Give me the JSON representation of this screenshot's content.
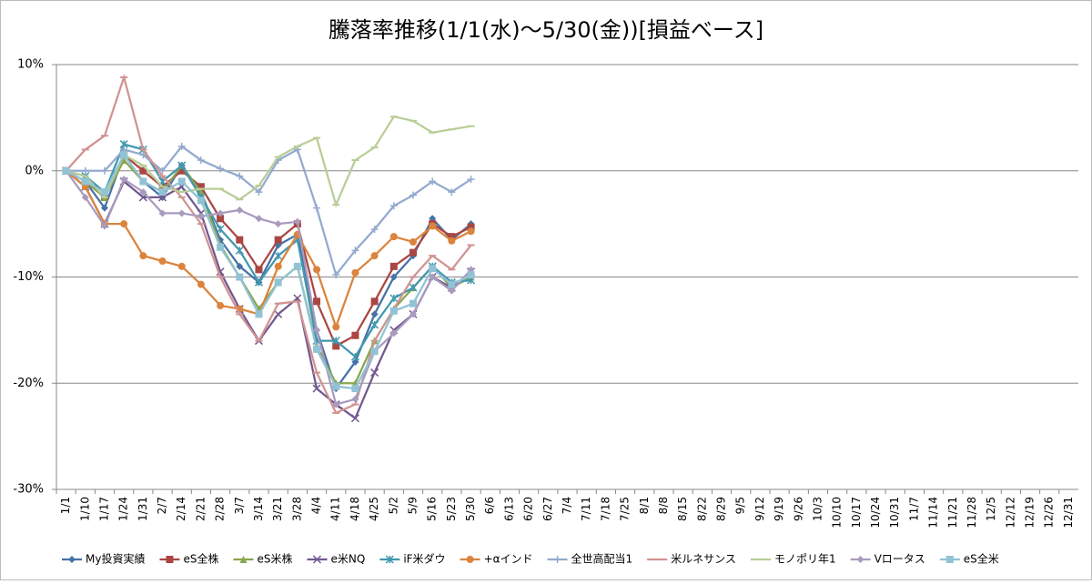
{
  "chart_data": {
    "type": "line",
    "title": "騰落率推移(1/1(水)～5/30(金))[損益ベース]",
    "categories": [
      "1/1",
      "1/10",
      "1/17",
      "1/24",
      "1/31",
      "2/7",
      "2/14",
      "2/21",
      "2/28",
      "3/7",
      "3/14",
      "3/21",
      "3/28",
      "4/4",
      "4/11",
      "4/18",
      "4/25",
      "5/2",
      "5/9",
      "5/16",
      "5/23",
      "5/30",
      "6/6",
      "6/13",
      "6/20",
      "6/27",
      "7/4",
      "7/11",
      "7/18",
      "7/25",
      "8/1",
      "8/8",
      "8/15",
      "8/22",
      "8/29",
      "9/5",
      "9/12",
      "9/19",
      "9/26",
      "10/3",
      "10/10",
      "10/17",
      "10/24",
      "10/31",
      "11/7",
      "11/14",
      "11/21",
      "11/28",
      "12/5",
      "12/12",
      "12/19",
      "12/26",
      "12/31"
    ],
    "ylim": [
      -30,
      10
    ],
    "yticks": [
      {
        "value": -30,
        "label": "-30%"
      },
      {
        "value": -20,
        "label": "-20%"
      },
      {
        "value": -10,
        "label": "-10%"
      },
      {
        "value": 0,
        "label": "0%"
      },
      {
        "value": 10,
        "label": "10%"
      }
    ],
    "grid": true,
    "legend": "bottom",
    "series": [
      {
        "name": "My投資実績",
        "color": "#4572A7",
        "marker": "diamond",
        "values": [
          0,
          -1,
          -3.5,
          1.5,
          -1,
          -2.5,
          0.5,
          -2,
          -6.5,
          -9,
          -10.5,
          -7,
          -6,
          -15,
          -20.5,
          -18,
          -13.5,
          -10,
          -8,
          -4.5,
          -6.5,
          -5,
          null,
          null,
          null,
          null,
          null,
          null,
          null,
          null,
          null,
          null,
          null,
          null,
          null,
          null,
          null,
          null,
          null,
          null,
          null,
          null,
          null,
          null,
          null,
          null,
          null,
          null,
          null,
          null,
          null,
          null,
          null
        ]
      },
      {
        "name": "eS全株",
        "color": "#AA4643",
        "marker": "square",
        "values": [
          0,
          -1,
          -2.5,
          1.5,
          0,
          -1.5,
          0,
          -1.5,
          -4.5,
          -6.5,
          -9.3,
          -6.5,
          -5,
          -12.3,
          -16.5,
          -15.5,
          -12.3,
          -9,
          -7.7,
          -5,
          -6.2,
          -5.3,
          null,
          null,
          null,
          null,
          null,
          null,
          null,
          null,
          null,
          null,
          null,
          null,
          null,
          null,
          null,
          null,
          null,
          null,
          null,
          null,
          null,
          null,
          null,
          null,
          null,
          null,
          null,
          null,
          null,
          null,
          null
        ]
      },
      {
        "name": "eS米株",
        "color": "#89A54E",
        "marker": "triangle",
        "values": [
          0,
          -1,
          -2.5,
          1,
          -1,
          -2,
          0.5,
          -2,
          -7,
          -10,
          -13,
          -10.5,
          -9,
          -16.5,
          -20,
          -20,
          -16,
          -13,
          -11,
          -9,
          -11,
          -10,
          null,
          null,
          null,
          null,
          null,
          null,
          null,
          null,
          null,
          null,
          null,
          null,
          null,
          null,
          null,
          null,
          null,
          null,
          null,
          null,
          null,
          null,
          null,
          null,
          null,
          null,
          null,
          null,
          null,
          null,
          null
        ]
      },
      {
        "name": "e米NQ",
        "color": "#71588F",
        "marker": "x",
        "values": [
          0,
          -1.5,
          -5,
          -1,
          -2.5,
          -2.5,
          -1.5,
          -4,
          -9.5,
          -13,
          -16,
          -13.5,
          -12,
          -20.5,
          -22,
          -23.3,
          -19,
          -15,
          -13.5,
          -10,
          -11,
          -9.5,
          null,
          null,
          null,
          null,
          null,
          null,
          null,
          null,
          null,
          null,
          null,
          null,
          null,
          null,
          null,
          null,
          null,
          null,
          null,
          null,
          null,
          null,
          null,
          null,
          null,
          null,
          null,
          null,
          null,
          null,
          null
        ]
      },
      {
        "name": "iF米ダウ",
        "color": "#4198AF",
        "marker": "star",
        "values": [
          0,
          -0.5,
          -2,
          2.5,
          2,
          -1,
          0.5,
          -2.5,
          -5.5,
          -7.5,
          -10.5,
          -8,
          -6.5,
          -16,
          -16,
          -17.5,
          -14.5,
          -12,
          -11,
          -9,
          -10.5,
          -10.3,
          null,
          null,
          null,
          null,
          null,
          null,
          null,
          null,
          null,
          null,
          null,
          null,
          null,
          null,
          null,
          null,
          null,
          null,
          null,
          null,
          null,
          null,
          null,
          null,
          null,
          null,
          null,
          null,
          null,
          null,
          null
        ]
      },
      {
        "name": "+αインド",
        "color": "#DB843D",
        "marker": "circle",
        "values": [
          0,
          -1.5,
          -5,
          -5,
          -8,
          -8.5,
          -9,
          -10.7,
          -12.7,
          -13,
          -13.5,
          -9,
          -6,
          -9.3,
          -14.7,
          -9.6,
          -8,
          -6.2,
          -6.7,
          -5.2,
          -6.6,
          -5.7,
          null,
          null,
          null,
          null,
          null,
          null,
          null,
          null,
          null,
          null,
          null,
          null,
          null,
          null,
          null,
          null,
          null,
          null,
          null,
          null,
          null,
          null,
          null,
          null,
          null,
          null,
          null,
          null,
          null,
          null,
          null
        ]
      },
      {
        "name": "全世高配当1",
        "color": "#93A9CF",
        "marker": "plus",
        "values": [
          0,
          0,
          0,
          2,
          1.5,
          0,
          2.3,
          1,
          0.2,
          -0.5,
          -2,
          1,
          2,
          -3.5,
          -9.8,
          -7.5,
          -5.5,
          -3.3,
          -2.3,
          -1,
          -2,
          -0.8,
          null,
          null,
          null,
          null,
          null,
          null,
          null,
          null,
          null,
          null,
          null,
          null,
          null,
          null,
          null,
          null,
          null,
          null,
          null,
          null,
          null,
          null,
          null,
          null,
          null,
          null,
          null,
          null,
          null,
          null,
          null
        ]
      },
      {
        "name": "米ルネサンス",
        "color": "#D19392",
        "marker": "dash",
        "values": [
          0,
          2,
          3.3,
          8.8,
          2,
          -0.5,
          -2.5,
          -5,
          -10,
          -13.5,
          -16,
          -12.5,
          -12.3,
          -19,
          -22.8,
          -22,
          -16,
          -13,
          -10,
          -8,
          -9.3,
          -7,
          null,
          null,
          null,
          null,
          null,
          null,
          null,
          null,
          null,
          null,
          null,
          null,
          null,
          null,
          null,
          null,
          null,
          null,
          null,
          null,
          null,
          null,
          null,
          null,
          null,
          null,
          null,
          null,
          null,
          null,
          null
        ]
      },
      {
        "name": "モノポリ年1",
        "color": "#B9CD96",
        "marker": "dash",
        "values": [
          0,
          -0.5,
          -2.5,
          1.5,
          0.5,
          -1.5,
          -2,
          -1.7,
          -1.7,
          -2.7,
          -1.4,
          1.3,
          2.3,
          3.1,
          -3.2,
          1,
          2.2,
          5.1,
          4.7,
          3.6,
          3.9,
          4.2,
          null,
          null,
          null,
          null,
          null,
          null,
          null,
          null,
          null,
          null,
          null,
          null,
          null,
          null,
          null,
          null,
          null,
          null,
          null,
          null,
          null,
          null,
          null,
          null,
          null,
          null,
          null,
          null,
          null,
          null,
          null
        ]
      },
      {
        "name": "Vロータス",
        "color": "#A99BBD",
        "marker": "diamond",
        "values": [
          0,
          -2.5,
          -5.2,
          -0.8,
          -2,
          -4,
          -4,
          -4.3,
          -4,
          -3.7,
          -4.5,
          -5,
          -4.8,
          -15,
          -22,
          -21.5,
          -17,
          -15.3,
          -13.5,
          -10,
          -11.3,
          -9.3,
          null,
          null,
          null,
          null,
          null,
          null,
          null,
          null,
          null,
          null,
          null,
          null,
          null,
          null,
          null,
          null,
          null,
          null,
          null,
          null,
          null,
          null,
          null,
          null,
          null,
          null,
          null,
          null,
          null,
          null,
          null
        ]
      },
      {
        "name": "eS全米",
        "color": "#91C3D5",
        "marker": "square",
        "values": [
          0,
          -1,
          -2,
          1.5,
          -1,
          -2,
          -1,
          -2.8,
          -7.2,
          -10,
          -13.5,
          -10.5,
          -9,
          -16.8,
          -20.3,
          -20.5,
          -17,
          -13.2,
          -12.5,
          -9.2,
          -10.7,
          -9.8,
          null,
          null,
          null,
          null,
          null,
          null,
          null,
          null,
          null,
          null,
          null,
          null,
          null,
          null,
          null,
          null,
          null,
          null,
          null,
          null,
          null,
          null,
          null,
          null,
          null,
          null,
          null,
          null,
          null,
          null,
          null
        ]
      }
    ]
  }
}
